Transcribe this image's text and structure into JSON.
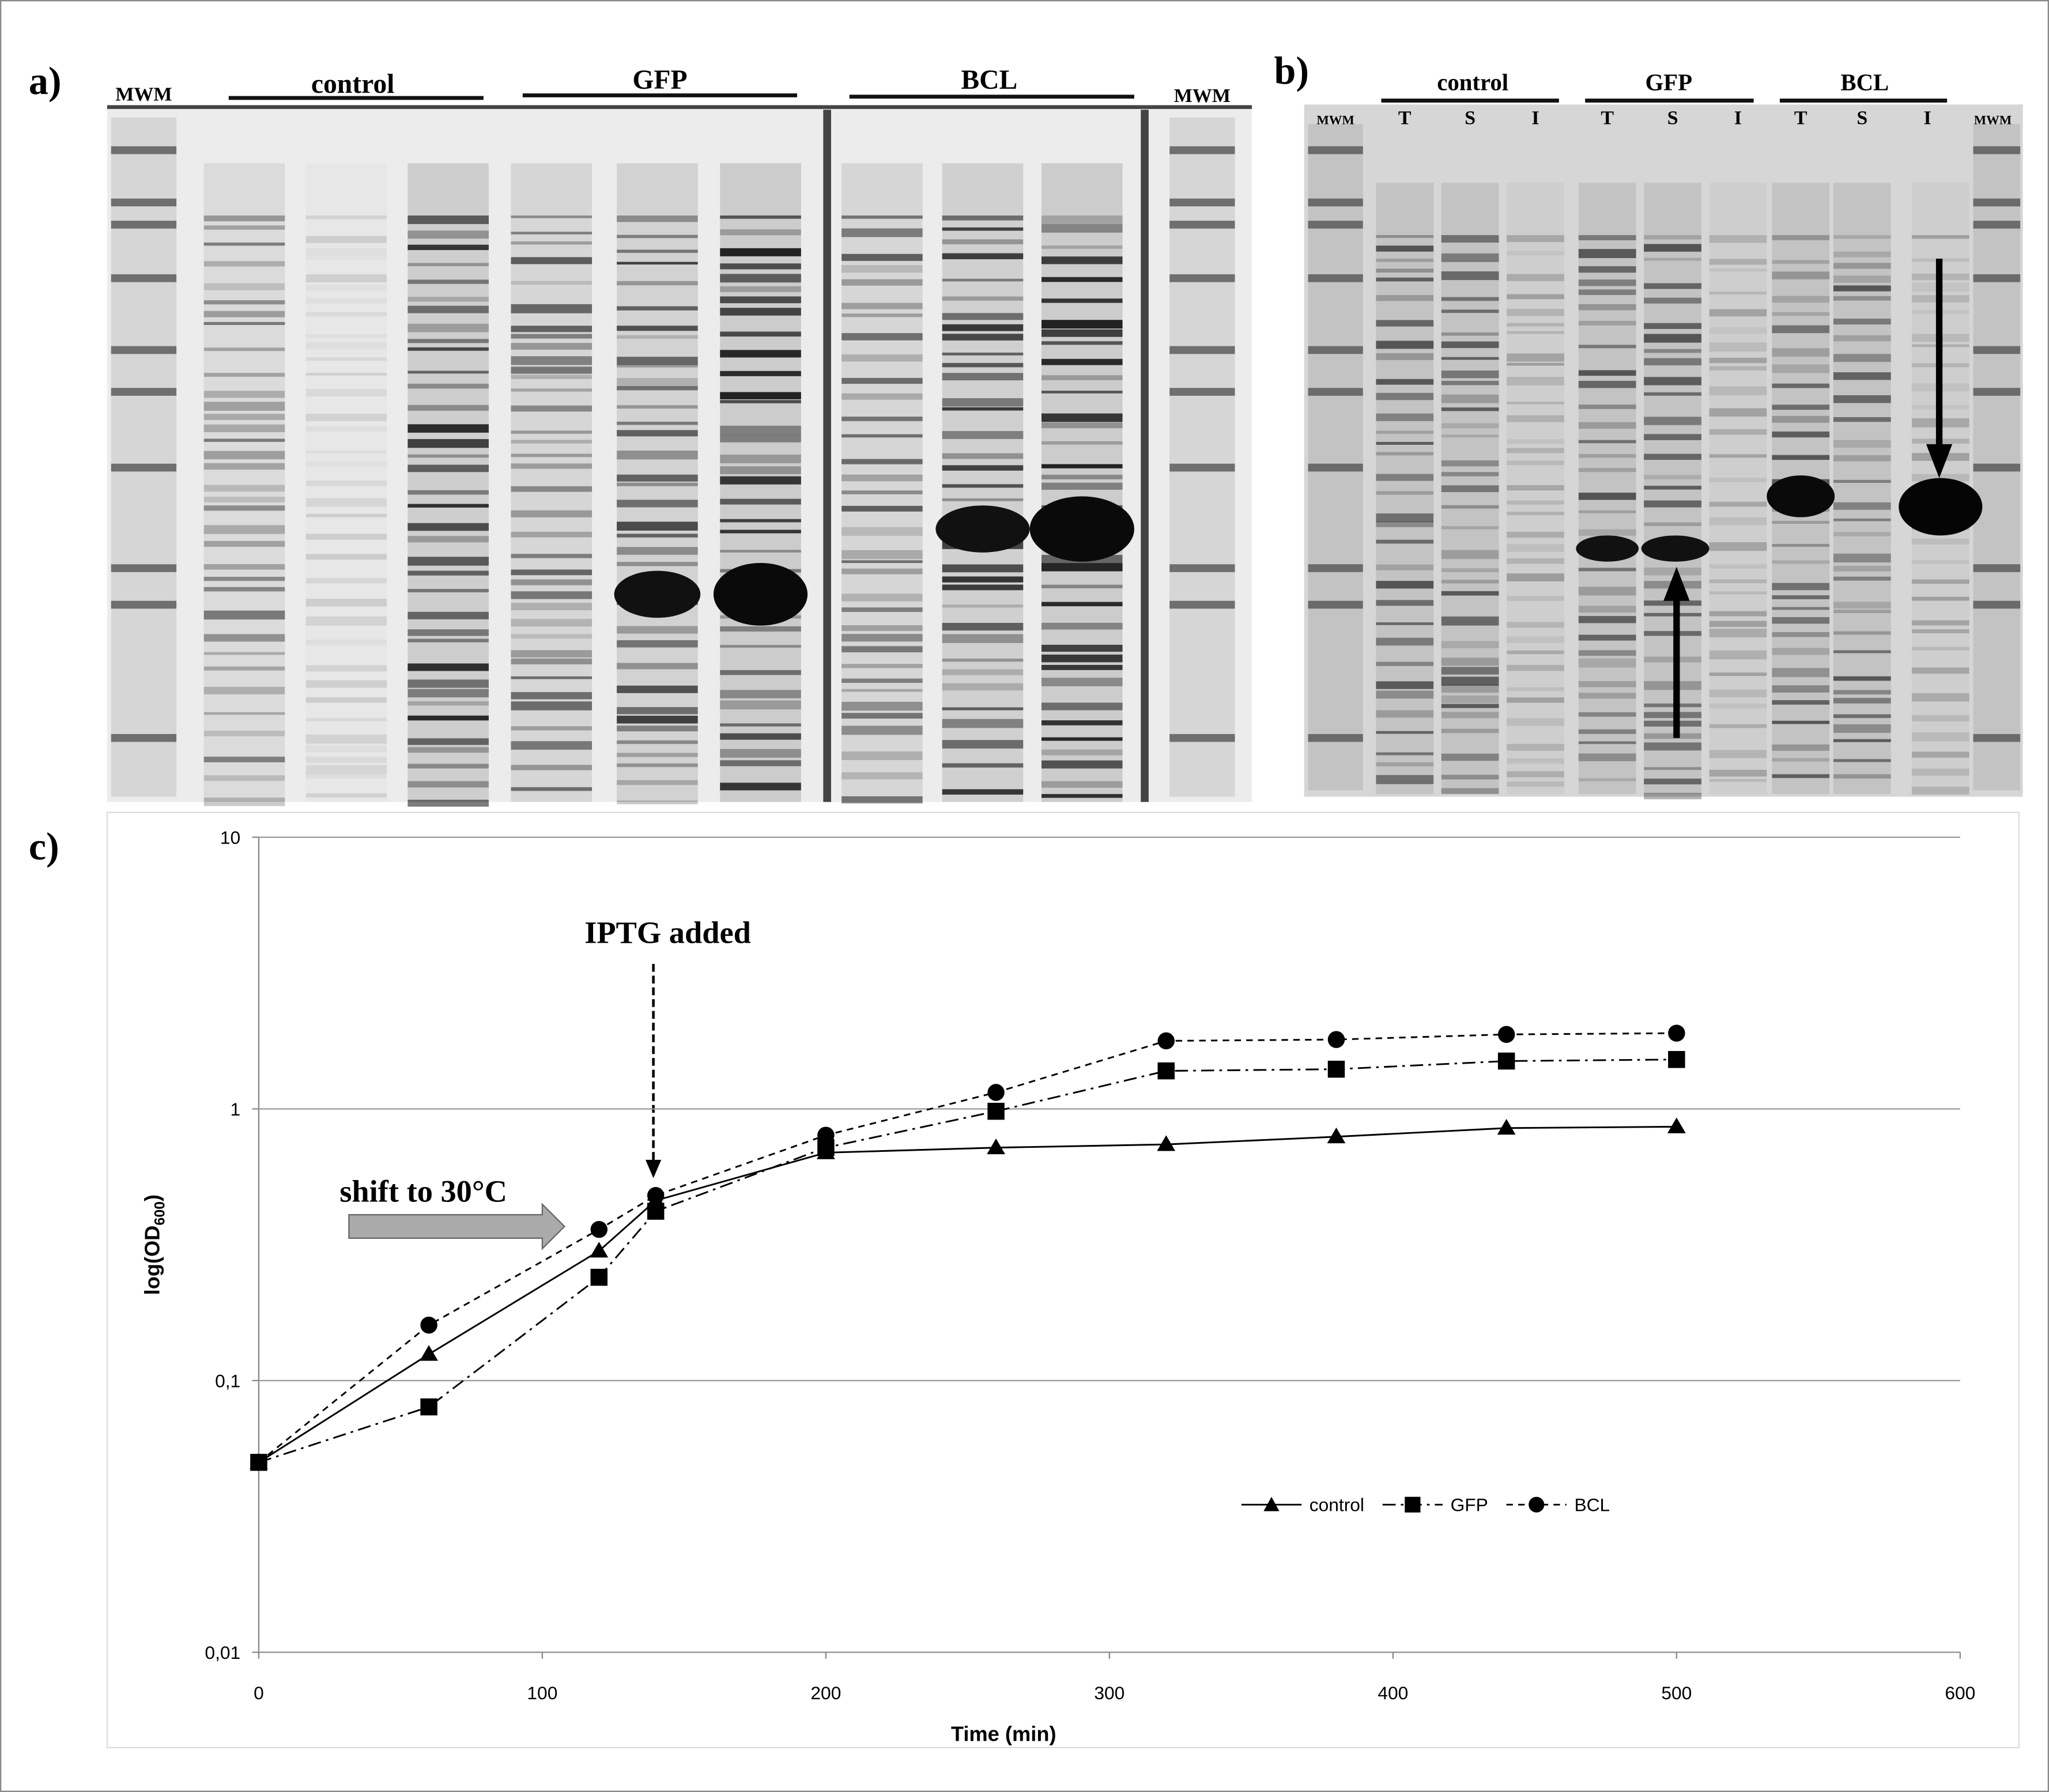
{
  "panel_a": {
    "label": "a)",
    "lane_labels": [
      "MWM",
      "control",
      "GFP",
      "BCL",
      "MWM"
    ]
  },
  "panel_b": {
    "label": "b)",
    "lane_labels": [
      "MWM",
      "control",
      "GFP",
      "BCL",
      "MWM"
    ],
    "fractions": [
      "T",
      "S",
      "I",
      "T",
      "S",
      "I",
      "T",
      "S",
      "I"
    ]
  },
  "chart_data": {
    "type": "line",
    "panel_label": "c)",
    "x_label": "Time (min)",
    "y_label": {
      "text": "log(OD",
      "subscript": "600",
      "end": ")"
    },
    "annotations": [
      "IPTG added",
      "shift to 30°C"
    ],
    "x": [
      0,
      60,
      120,
      140,
      200,
      260,
      320,
      380,
      440,
      500
    ],
    "series": [
      {
        "name": "control",
        "color": "#000000",
        "line_style": "solid",
        "marker": "triangle",
        "values": [
          0.05,
          0.125,
          0.3,
          0.46,
          0.69,
          0.72,
          0.74,
          0.79,
          0.85,
          0.86
        ]
      },
      {
        "name": "GFP",
        "color": "#000000",
        "line_style": "dashdot",
        "marker": "square",
        "values": [
          0.05,
          0.08,
          0.24,
          0.42,
          0.72,
          0.98,
          1.38,
          1.4,
          1.5,
          1.52
        ]
      },
      {
        "name": "BCL",
        "color": "#000000",
        "line_style": "dashed",
        "marker": "circle",
        "values": [
          0.05,
          0.16,
          0.36,
          0.48,
          0.8,
          1.15,
          1.78,
          1.8,
          1.88,
          1.9
        ]
      }
    ],
    "xlim": [
      0,
      600
    ],
    "xticks": [
      0,
      100,
      200,
      300,
      400,
      500,
      600
    ],
    "ylim": [
      0.01,
      10
    ],
    "y_scale": "log",
    "yticks": [
      {
        "value": 0.01,
        "label": "0,01"
      },
      {
        "value": 0.1,
        "label": "0,1"
      },
      1,
      10
    ],
    "grid": "y",
    "legend": "lower right"
  }
}
